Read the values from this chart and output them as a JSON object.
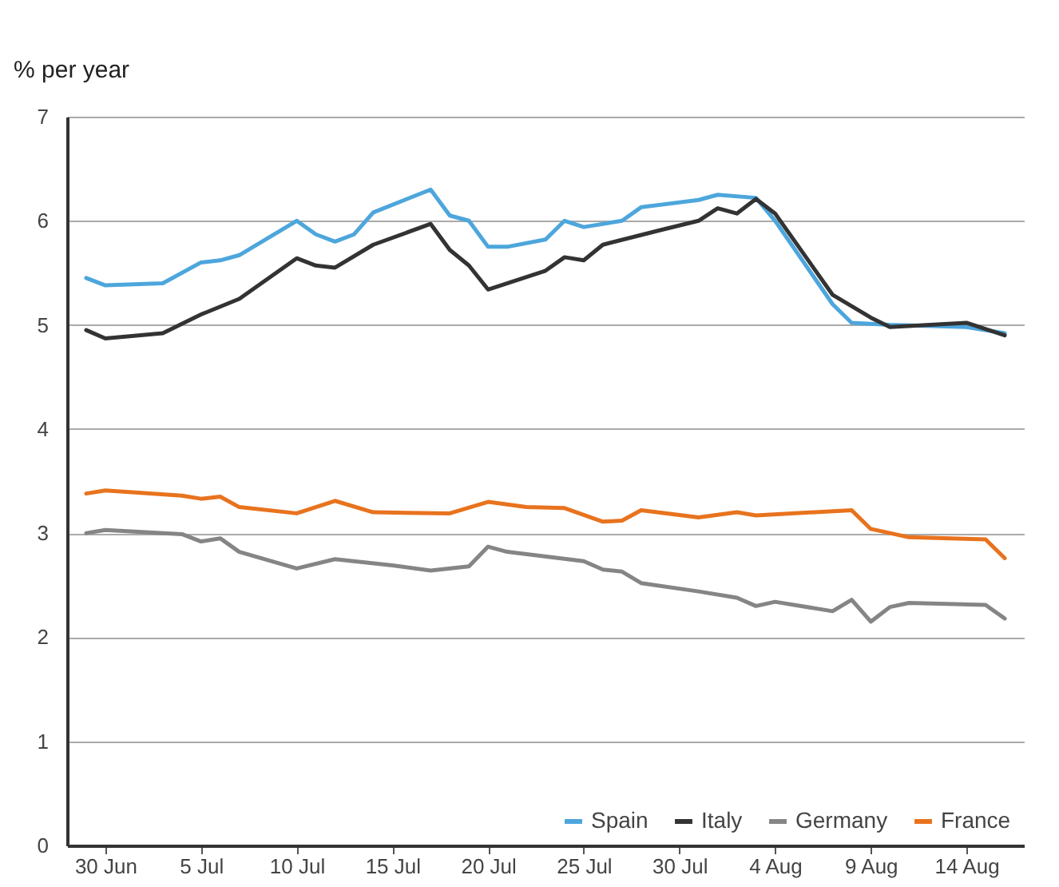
{
  "chart_data": {
    "type": "line",
    "ylabel": "% per year",
    "ylim": [
      0,
      7
    ],
    "yticks": [
      0,
      1,
      2,
      3,
      4,
      5,
      6,
      7
    ],
    "xlim": [
      "--06-28",
      "--08-17"
    ],
    "xticks": [
      {
        "value": "--06-30",
        "label": "30 Jun"
      },
      {
        "value": "--07-05",
        "label": "5 Jul"
      },
      {
        "value": "--07-10",
        "label": "10 Jul"
      },
      {
        "value": "--07-15",
        "label": "15 Jul"
      },
      {
        "value": "--07-20",
        "label": "20 Jul"
      },
      {
        "value": "--07-25",
        "label": "25 Jul"
      },
      {
        "value": "--07-30",
        "label": "30 Jul"
      },
      {
        "value": "--08-04",
        "label": "4 Aug"
      },
      {
        "value": "--08-09",
        "label": "9 Aug"
      },
      {
        "value": "--08-14",
        "label": "14 Aug"
      }
    ],
    "grid": "y",
    "legend": "bottom right",
    "line_style": "solid",
    "marker": "none",
    "series": [
      {
        "name": "Spain",
        "color": "#4da6dc",
        "x": [
          "--06-29",
          "--06-30",
          "--07-03",
          "--07-05",
          "--07-06",
          "--07-07",
          "--07-10",
          "--07-11",
          "--07-12",
          "--07-13",
          "--07-14",
          "--07-17",
          "--07-18",
          "--07-19",
          "--07-20",
          "--07-21",
          "--07-23",
          "--07-24",
          "--07-25",
          "--07-27",
          "--07-28",
          "--07-31",
          "--08-01",
          "--08-03",
          "--08-04",
          "--08-07",
          "--08-08",
          "--08-10",
          "--08-14",
          "--08-16"
        ],
        "values": [
          5.45,
          5.38,
          5.4,
          5.6,
          5.62,
          5.67,
          6.0,
          5.87,
          5.8,
          5.87,
          6.08,
          6.3,
          6.05,
          6.0,
          5.75,
          5.75,
          5.82,
          6.0,
          5.94,
          6.0,
          6.13,
          6.2,
          6.25,
          6.22,
          6.0,
          5.2,
          5.02,
          5.0,
          4.98,
          4.92
        ]
      },
      {
        "name": "Italy",
        "color": "#333333",
        "x": [
          "--06-29",
          "--06-30",
          "--07-03",
          "--07-05",
          "--07-07",
          "--07-10",
          "--07-11",
          "--07-12",
          "--07-14",
          "--07-17",
          "--07-18",
          "--07-19",
          "--07-20",
          "--07-23",
          "--07-24",
          "--07-25",
          "--07-26",
          "--07-29",
          "--07-31",
          "--08-01",
          "--08-02",
          "--08-03",
          "--08-04",
          "--08-07",
          "--08-09",
          "--08-10",
          "--08-14",
          "--08-16"
        ],
        "values": [
          4.95,
          4.87,
          4.92,
          5.1,
          5.25,
          5.64,
          5.57,
          5.55,
          5.77,
          5.97,
          5.72,
          5.57,
          5.34,
          5.52,
          5.65,
          5.62,
          5.77,
          5.91,
          6.0,
          6.12,
          6.07,
          6.21,
          6.07,
          5.29,
          5.07,
          4.98,
          5.02,
          4.9
        ]
      },
      {
        "name": "Germany",
        "color": "#858585",
        "x": [
          "--06-29",
          "--06-30",
          "--07-04",
          "--07-05",
          "--07-06",
          "--07-07",
          "--07-10",
          "--07-12",
          "--07-15",
          "--07-17",
          "--07-19",
          "--07-20",
          "--07-21",
          "--07-25",
          "--07-26",
          "--07-27",
          "--07-28",
          "--07-31",
          "--08-02",
          "--08-03",
          "--08-04",
          "--08-07",
          "--08-08",
          "--08-09",
          "--08-10",
          "--08-11",
          "--08-15",
          "--08-16"
        ],
        "values": [
          3.0,
          3.03,
          2.99,
          2.92,
          2.95,
          2.82,
          2.66,
          2.75,
          2.69,
          2.64,
          2.68,
          2.87,
          2.82,
          2.73,
          2.65,
          2.63,
          2.52,
          2.44,
          2.38,
          2.3,
          2.34,
          2.25,
          2.36,
          2.15,
          2.29,
          2.33,
          2.31,
          2.18
        ]
      },
      {
        "name": "France",
        "color": "#e8731e",
        "x": [
          "--06-29",
          "--06-30",
          "--07-04",
          "--07-05",
          "--07-06",
          "--07-07",
          "--07-10",
          "--07-12",
          "--07-14",
          "--07-18",
          "--07-20",
          "--07-22",
          "--07-24",
          "--07-26",
          "--07-27",
          "--07-28",
          "--07-31",
          "--08-02",
          "--08-03",
          "--08-08",
          "--08-09",
          "--08-11",
          "--08-15",
          "--08-16"
        ],
        "values": [
          3.38,
          3.41,
          3.36,
          3.33,
          3.35,
          3.25,
          3.19,
          3.31,
          3.2,
          3.19,
          3.3,
          3.25,
          3.24,
          3.11,
          3.12,
          3.22,
          3.15,
          3.2,
          3.17,
          3.22,
          3.04,
          2.96,
          2.94,
          2.76
        ]
      }
    ]
  }
}
